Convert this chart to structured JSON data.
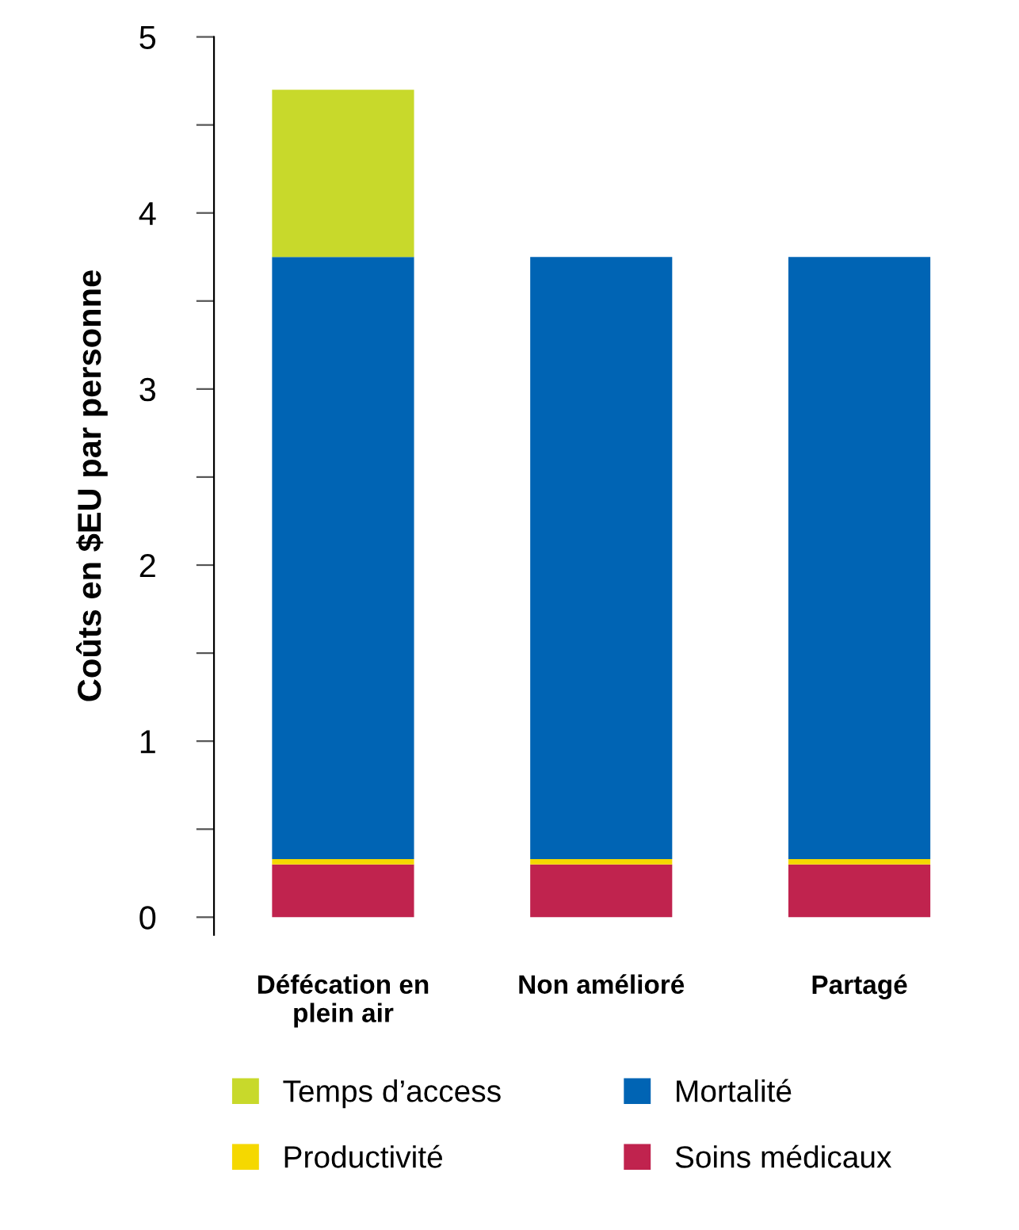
{
  "chart_data": {
    "type": "bar",
    "stacked": true,
    "ylabel": "Coûts en $EU par personne",
    "categories": [
      "Défécation en\nplein air",
      "Non amélioré",
      "Partagé"
    ],
    "series": [
      {
        "name": "Soins médicaux",
        "color": "#c0234e",
        "values": [
          0.3,
          0.3,
          0.3
        ]
      },
      {
        "name": "Productivité",
        "color": "#f5d800",
        "values": [
          0.03,
          0.03,
          0.03
        ]
      },
      {
        "name": "Mortalité",
        "color": "#0064b4",
        "values": [
          3.42,
          3.42,
          3.42
        ]
      },
      {
        "name": "Temps d’access",
        "color": "#c8d92b",
        "values": [
          0.95,
          0,
          0
        ]
      }
    ],
    "ylim": [
      -0.1,
      5
    ],
    "yticks": [
      0,
      {
        "value": 0.5,
        "label": null
      },
      1,
      {
        "value": 1.5,
        "label": null
      },
      2,
      {
        "value": 2.5,
        "label": null
      },
      3,
      {
        "value": 3.5,
        "label": null
      },
      4,
      {
        "value": 4.5,
        "label": null
      },
      5
    ],
    "grid": false,
    "legend": "bottom"
  }
}
